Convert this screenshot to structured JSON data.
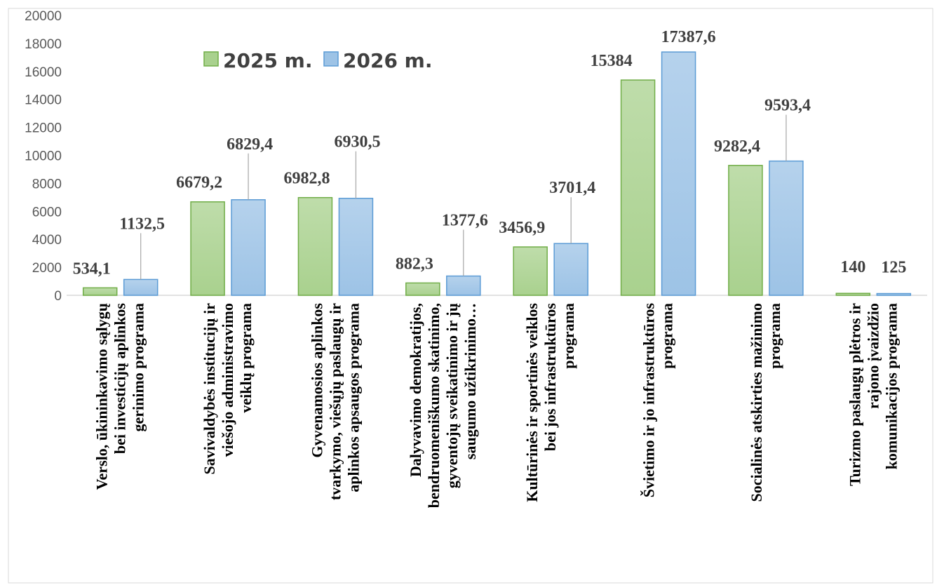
{
  "chart_data": {
    "type": "bar",
    "categories": [
      [
        "Verslo, ūkininkavimo sąlygų",
        "bei investicijų aplinkos",
        "gerinimo programa"
      ],
      [
        "Savivaldybės institucijų ir",
        "viešojo administravimo",
        "veiklų programa"
      ],
      [
        "Gyvenamosios aplinkos",
        "tvarkymo, viešųjų paslaugų ir",
        "aplinkos apsaugos programa"
      ],
      [
        "Dalyvavimo demokratijos,",
        "bendruomeniškumo skatinimo,",
        "gyventojų sveikatinimo ir jų",
        "saugumo užtikrinimo…"
      ],
      [
        "Kultūrinės ir sportinės veiklos",
        "bei jos infrastruktūros",
        "programa"
      ],
      [
        "Švietimo ir jo infrastruktūros",
        "programa"
      ],
      [
        "Socialinės atskirties mažinimo",
        "programa"
      ],
      [
        "Turizmo paslaugų plėtros ir",
        "rajono įvaizdžio",
        "komunikacijos programa"
      ]
    ],
    "series": [
      {
        "name": "2025 m.",
        "values": [
          534.1,
          6679.2,
          6982.8,
          882.3,
          3456.9,
          15384,
          9282.4,
          140
        ],
        "labels": [
          "534,1",
          "6679,2",
          "6982,8",
          "882,3",
          "3456,9",
          "15384",
          "9282,4",
          "140"
        ],
        "color": "#a9d18e",
        "border": "#70ad47"
      },
      {
        "name": "2026 m.",
        "values": [
          1132.5,
          6829.4,
          6930.5,
          1377.6,
          3701.4,
          17387.6,
          9593.4,
          125
        ],
        "labels": [
          "1132,5",
          "6829,4",
          "6930,5",
          "1377,6",
          "3701,4",
          "17387,6",
          "9593,4",
          "125"
        ],
        "color": "#9dc3e6",
        "border": "#5b9bd5"
      }
    ],
    "yticks": [
      "0",
      "2000",
      "4000",
      "6000",
      "8000",
      "10000",
      "12000",
      "14000",
      "16000",
      "18000",
      "20000"
    ],
    "ylim": [
      0,
      20000
    ],
    "grid": false,
    "legend_position": "top-left"
  }
}
